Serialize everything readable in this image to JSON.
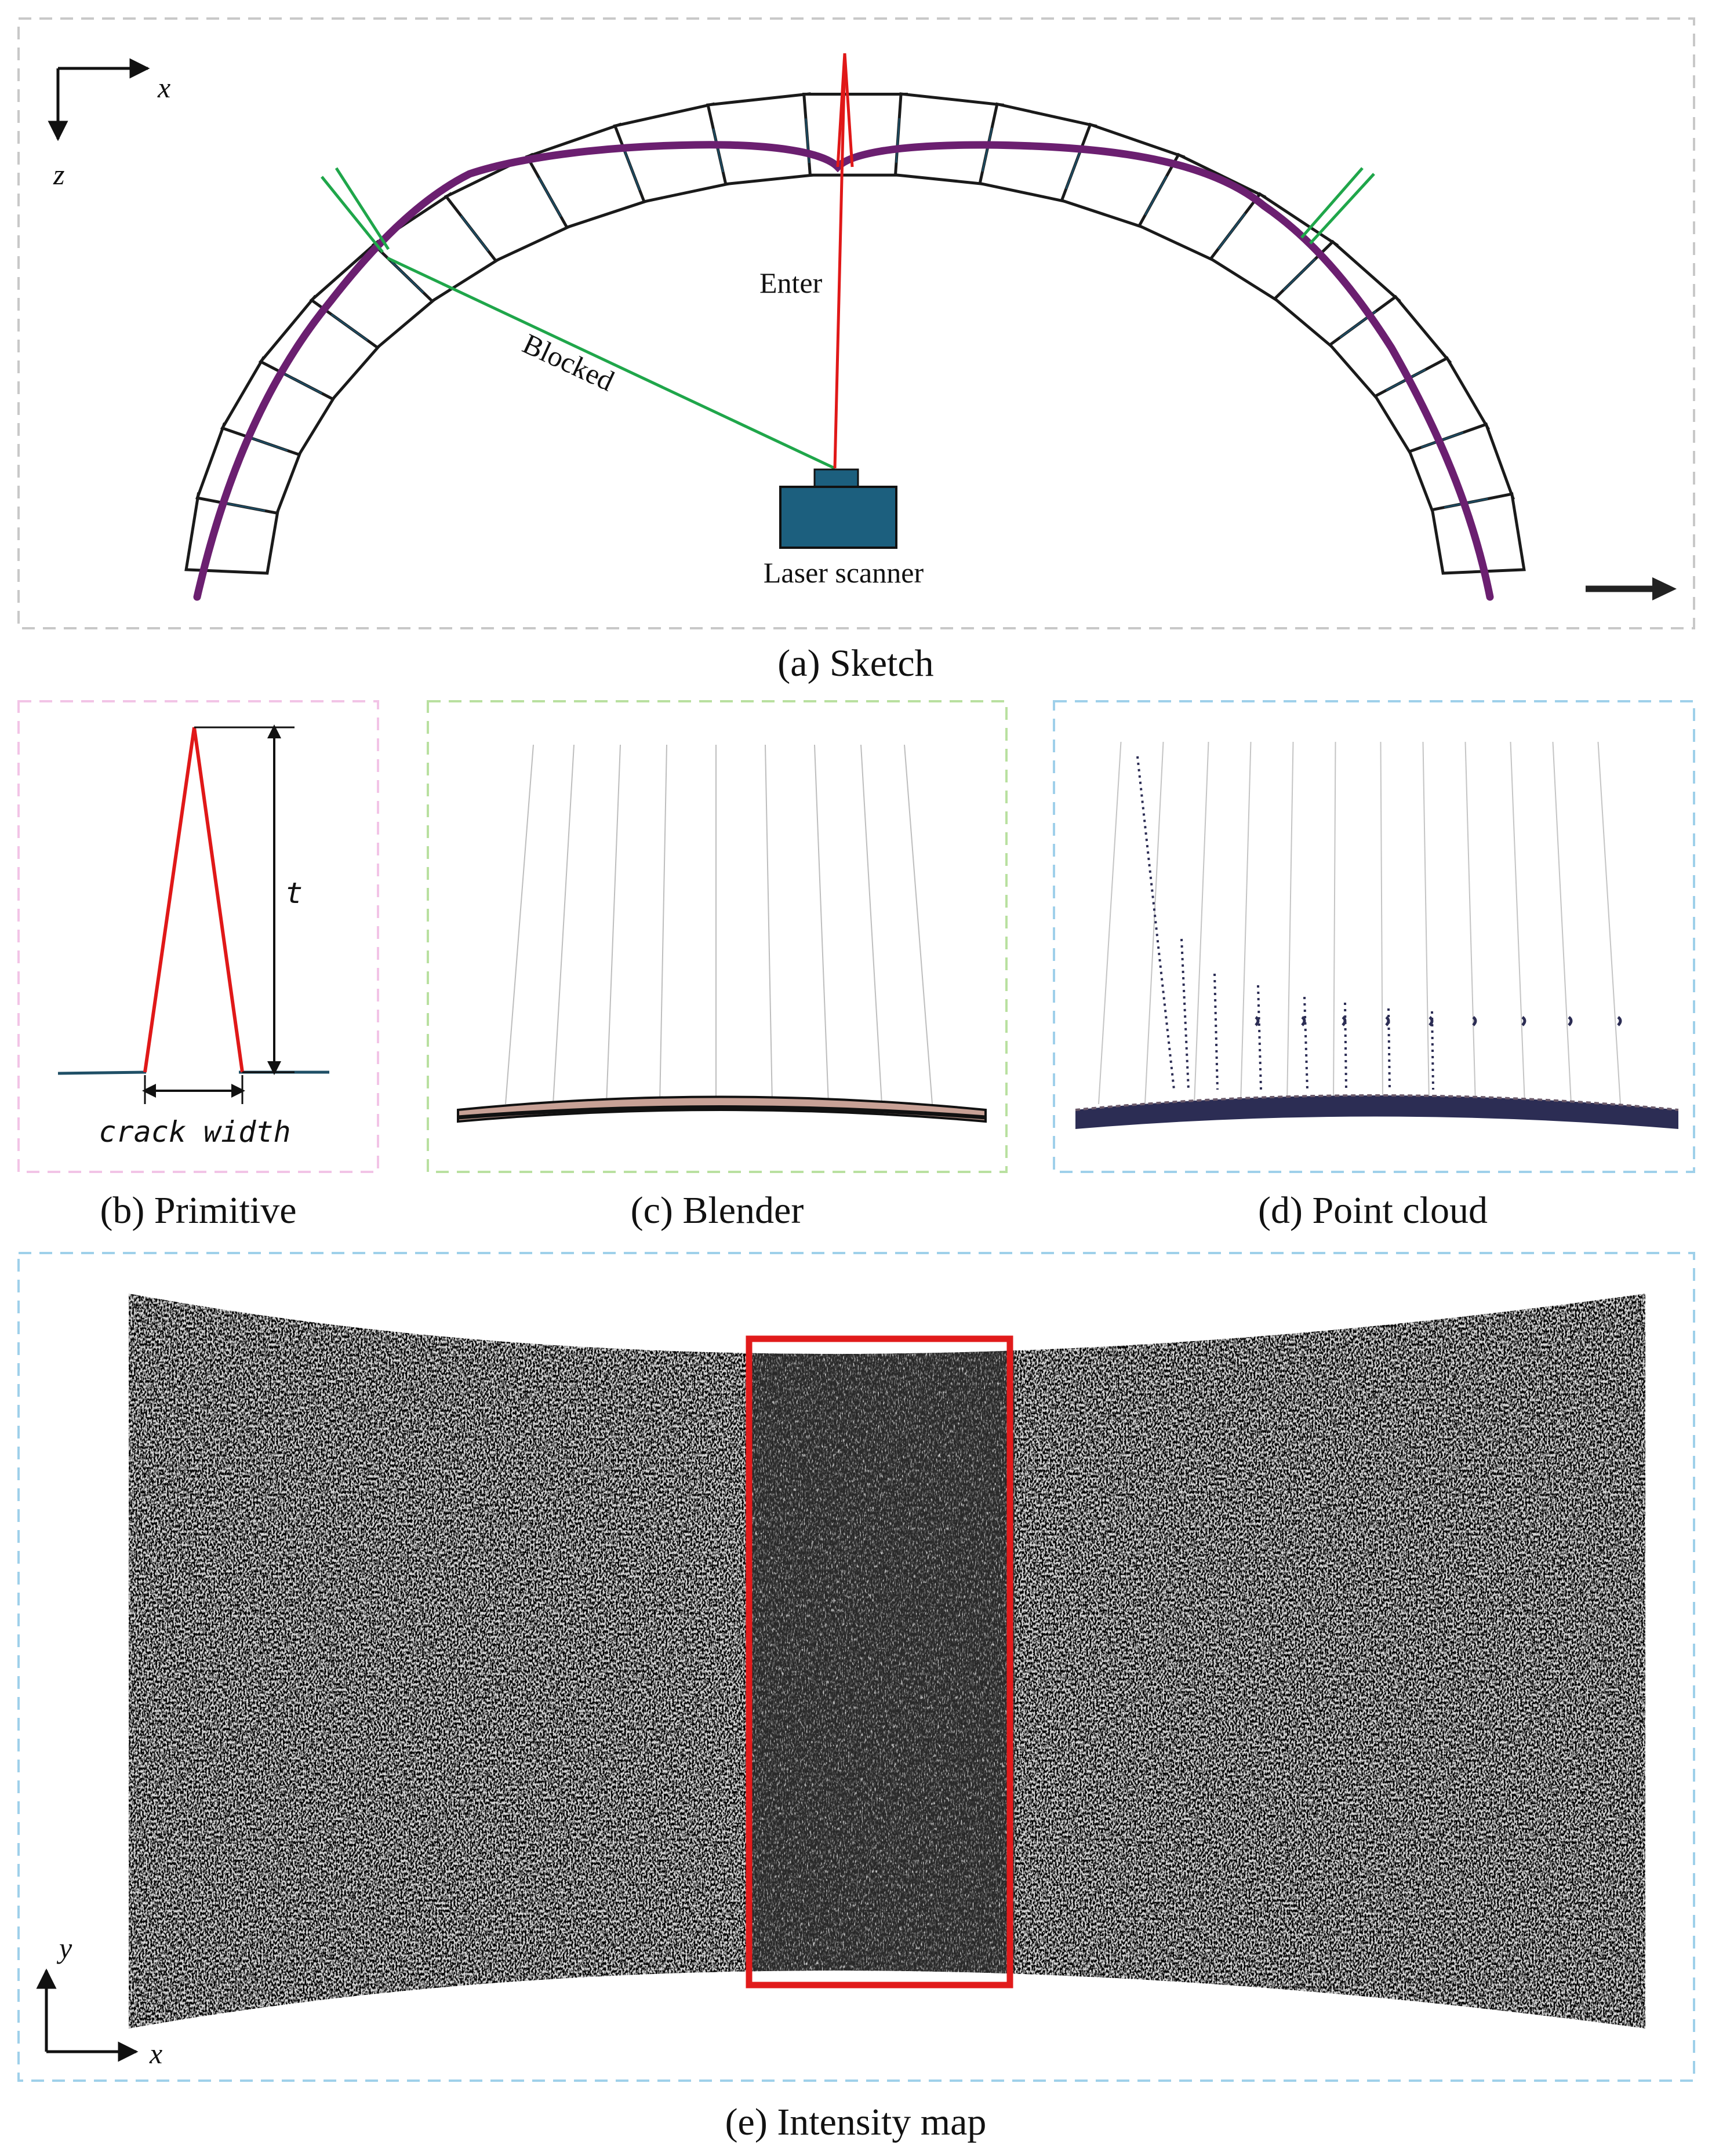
{
  "colors": {
    "sketch_frame": "#c8c8c8",
    "primitive_frame": "#f2c4e6",
    "blender_frame": "#b9e0a0",
    "pointcloud_frame": "#9fd0ea",
    "intensity_frame": "#9fd0ea",
    "crack_red": "#e01818",
    "ray_green": "#1fa64a",
    "surface_purple": "#6b1f70",
    "scanner_blue": "#1c5f7e",
    "joint_blue": "#1f6b8f",
    "highlight_red": "#e11b1b"
  },
  "panel_a": {
    "caption": "(a) Sketch",
    "axis_x": "x",
    "axis_z": "z",
    "enter_label": "Enter",
    "blocked_label": "Blocked",
    "scanner_label": "Laser scanner",
    "scanner_icon": "laser-scanner-icon",
    "direction_icon": "arrow-right-icon"
  },
  "panel_b": {
    "caption": "(b) Primitive",
    "height_label": "t",
    "width_label": "crack width"
  },
  "panel_c": {
    "caption": "(c) Blender"
  },
  "panel_d": {
    "caption": "(d) Point cloud"
  },
  "panel_e": {
    "caption": "(e) Intensity map",
    "axis_x": "x",
    "axis_y": "y"
  }
}
